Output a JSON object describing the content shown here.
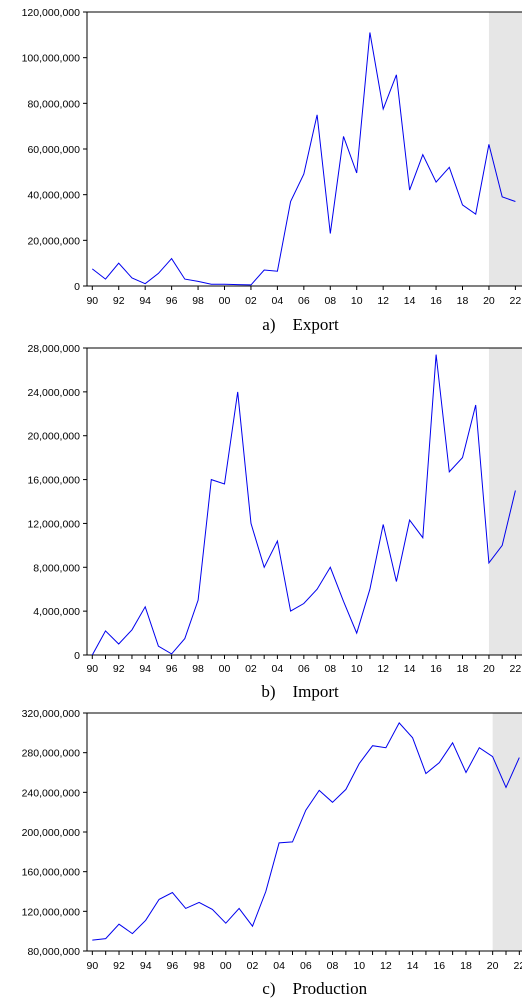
{
  "chart_data": [
    {
      "type": "line",
      "caption_letter": "a)",
      "caption_title": "Export",
      "line_color": "#0000ee",
      "shade_color": "#e6e6e6",
      "shaded_range": [
        2020,
        2022.5
      ],
      "x": [
        1990,
        1991,
        1992,
        1993,
        1994,
        1995,
        1996,
        1997,
        1998,
        1999,
        2000,
        2001,
        2002,
        2003,
        2004,
        2005,
        2006,
        2007,
        2008,
        2009,
        2010,
        2011,
        2012,
        2013,
        2014,
        2015,
        2016,
        2017,
        2018,
        2019,
        2020,
        2021,
        2022
      ],
      "values": [
        7500000,
        3000000,
        10000000,
        3500000,
        1000000,
        5500000,
        12000000,
        3000000,
        2000000,
        800000,
        800000,
        600000,
        500000,
        7000000,
        6500000,
        37000000,
        49000000,
        75000000,
        23000000,
        65500000,
        49500000,
        111000000,
        77500000,
        92500000,
        42000000,
        57500000,
        45500000,
        52000000,
        35500000,
        31500000,
        62000000,
        39000000,
        37000000
      ],
      "xlim": [
        1989.6,
        2022.5
      ],
      "ylim": [
        0,
        120000000
      ],
      "y_ticks": [
        0,
        20000000,
        40000000,
        60000000,
        80000000,
        100000000,
        120000000
      ],
      "y_tick_labels": [
        "0",
        "20,000,000",
        "40,000,000",
        "60,000,000",
        "80,000,000",
        "100,000,000",
        "120,000,000"
      ],
      "x_ticks": [
        1990,
        1992,
        1994,
        1996,
        1998,
        2000,
        2002,
        2004,
        2006,
        2008,
        2010,
        2012,
        2014,
        2016,
        2018,
        2020,
        2022
      ],
      "x_tick_labels": [
        "90",
        "92",
        "94",
        "96",
        "98",
        "00",
        "02",
        "04",
        "06",
        "08",
        "10",
        "12",
        "14",
        "16",
        "18",
        "20",
        "22"
      ]
    },
    {
      "type": "line",
      "caption_letter": "b)",
      "caption_title": "Import",
      "line_color": "#0000ee",
      "shade_color": "#e6e6e6",
      "shaded_range": [
        2020,
        2022.5
      ],
      "x": [
        1990,
        1991,
        1992,
        1993,
        1994,
        1995,
        1996,
        1997,
        1998,
        1999,
        2000,
        2001,
        2002,
        2003,
        2004,
        2005,
        2006,
        2007,
        2008,
        2009,
        2010,
        2011,
        2012,
        2013,
        2014,
        2015,
        2016,
        2017,
        2018,
        2019,
        2020,
        2021,
        2022
      ],
      "values": [
        0,
        2200000,
        1000000,
        2300000,
        4400000,
        800000,
        100000,
        1500000,
        5000000,
        16000000,
        15600000,
        24000000,
        12000000,
        8000000,
        10400000,
        4000000,
        4700000,
        6000000,
        8000000,
        4900000,
        2000000,
        6000000,
        11900000,
        6700000,
        12300000,
        10700000,
        27400000,
        16700000,
        18000000,
        22800000,
        8400000,
        10000000,
        15000000
      ],
      "xlim": [
        1989.6,
        2022.5
      ],
      "ylim": [
        0,
        28000000
      ],
      "y_ticks": [
        0,
        4000000,
        8000000,
        12000000,
        16000000,
        20000000,
        24000000,
        28000000
      ],
      "y_tick_labels": [
        "0",
        "4,000,000",
        "8,000,000",
        "12,000,000",
        "16,000,000",
        "20,000,000",
        "24,000,000",
        "28,000,000"
      ],
      "x_ticks": [
        1990,
        1991,
        1992,
        1993,
        1994,
        1995,
        1996,
        1997,
        1998,
        1999,
        2000,
        2001,
        2002,
        2003,
        2004,
        2005,
        2006,
        2007,
        2008,
        2009,
        2010,
        2011,
        2012,
        2013,
        2014,
        2015,
        2016,
        2017,
        2018,
        2019,
        2020,
        2021,
        2022
      ],
      "x_tick_labels": [
        "90",
        "",
        "92",
        "",
        "94",
        "",
        "96",
        "",
        "98",
        "",
        "00",
        "",
        "02",
        "",
        "04",
        "",
        "06",
        "",
        "08",
        "",
        "10",
        "",
        "12",
        "",
        "14",
        "",
        "16",
        "",
        "18",
        "",
        "20",
        "",
        "22"
      ]
    },
    {
      "type": "line",
      "caption_letter": "c)",
      "caption_title": "Production",
      "line_color": "#0000ee",
      "shade_color": "#e6e6e6",
      "shaded_range": [
        2020,
        2022.2
      ],
      "x": [
        1990,
        1991,
        1992,
        1993,
        1994,
        1995,
        1996,
        1997,
        1998,
        1999,
        2000,
        2001,
        2002,
        2003,
        2004,
        2005,
        2006,
        2007,
        2008,
        2009,
        2010,
        2011,
        2012,
        2013,
        2014,
        2015,
        2016,
        2017,
        2018,
        2019,
        2020,
        2021,
        2022
      ],
      "values": [
        91000000,
        92500000,
        107000000,
        97500000,
        111000000,
        132000000,
        139000000,
        123000000,
        129000000,
        122000000,
        108000000,
        123000000,
        105000000,
        140000000,
        189000000,
        190000000,
        222000000,
        242000000,
        230000000,
        243000000,
        269000000,
        287000000,
        285000000,
        310000000,
        295000000,
        259000000,
        270000000,
        290000000,
        260000000,
        285000000,
        276000000,
        245000000,
        275000000
      ],
      "xlim": [
        1989.6,
        2022.2
      ],
      "ylim": [
        80000000,
        320000000
      ],
      "y_ticks": [
        80000000,
        120000000,
        160000000,
        200000000,
        240000000,
        280000000,
        320000000
      ],
      "y_tick_labels": [
        "80,000,000",
        "120,000,000",
        "160,000,000",
        "200,000,000",
        "240,000,000",
        "280,000,000",
        "320,000,000"
      ],
      "x_ticks": [
        1990,
        1991,
        1992,
        1993,
        1994,
        1995,
        1996,
        1997,
        1998,
        1999,
        2000,
        2001,
        2002,
        2003,
        2004,
        2005,
        2006,
        2007,
        2008,
        2009,
        2010,
        2011,
        2012,
        2013,
        2014,
        2015,
        2016,
        2017,
        2018,
        2019,
        2020,
        2021,
        2022
      ],
      "x_tick_labels": [
        "90",
        "",
        "92",
        "",
        "94",
        "",
        "96",
        "",
        "98",
        "",
        "00",
        "",
        "02",
        "",
        "04",
        "",
        "06",
        "",
        "08",
        "",
        "10",
        "",
        "12",
        "",
        "14",
        "",
        "16",
        "",
        "18",
        "",
        "20",
        "",
        "22"
      ]
    }
  ]
}
